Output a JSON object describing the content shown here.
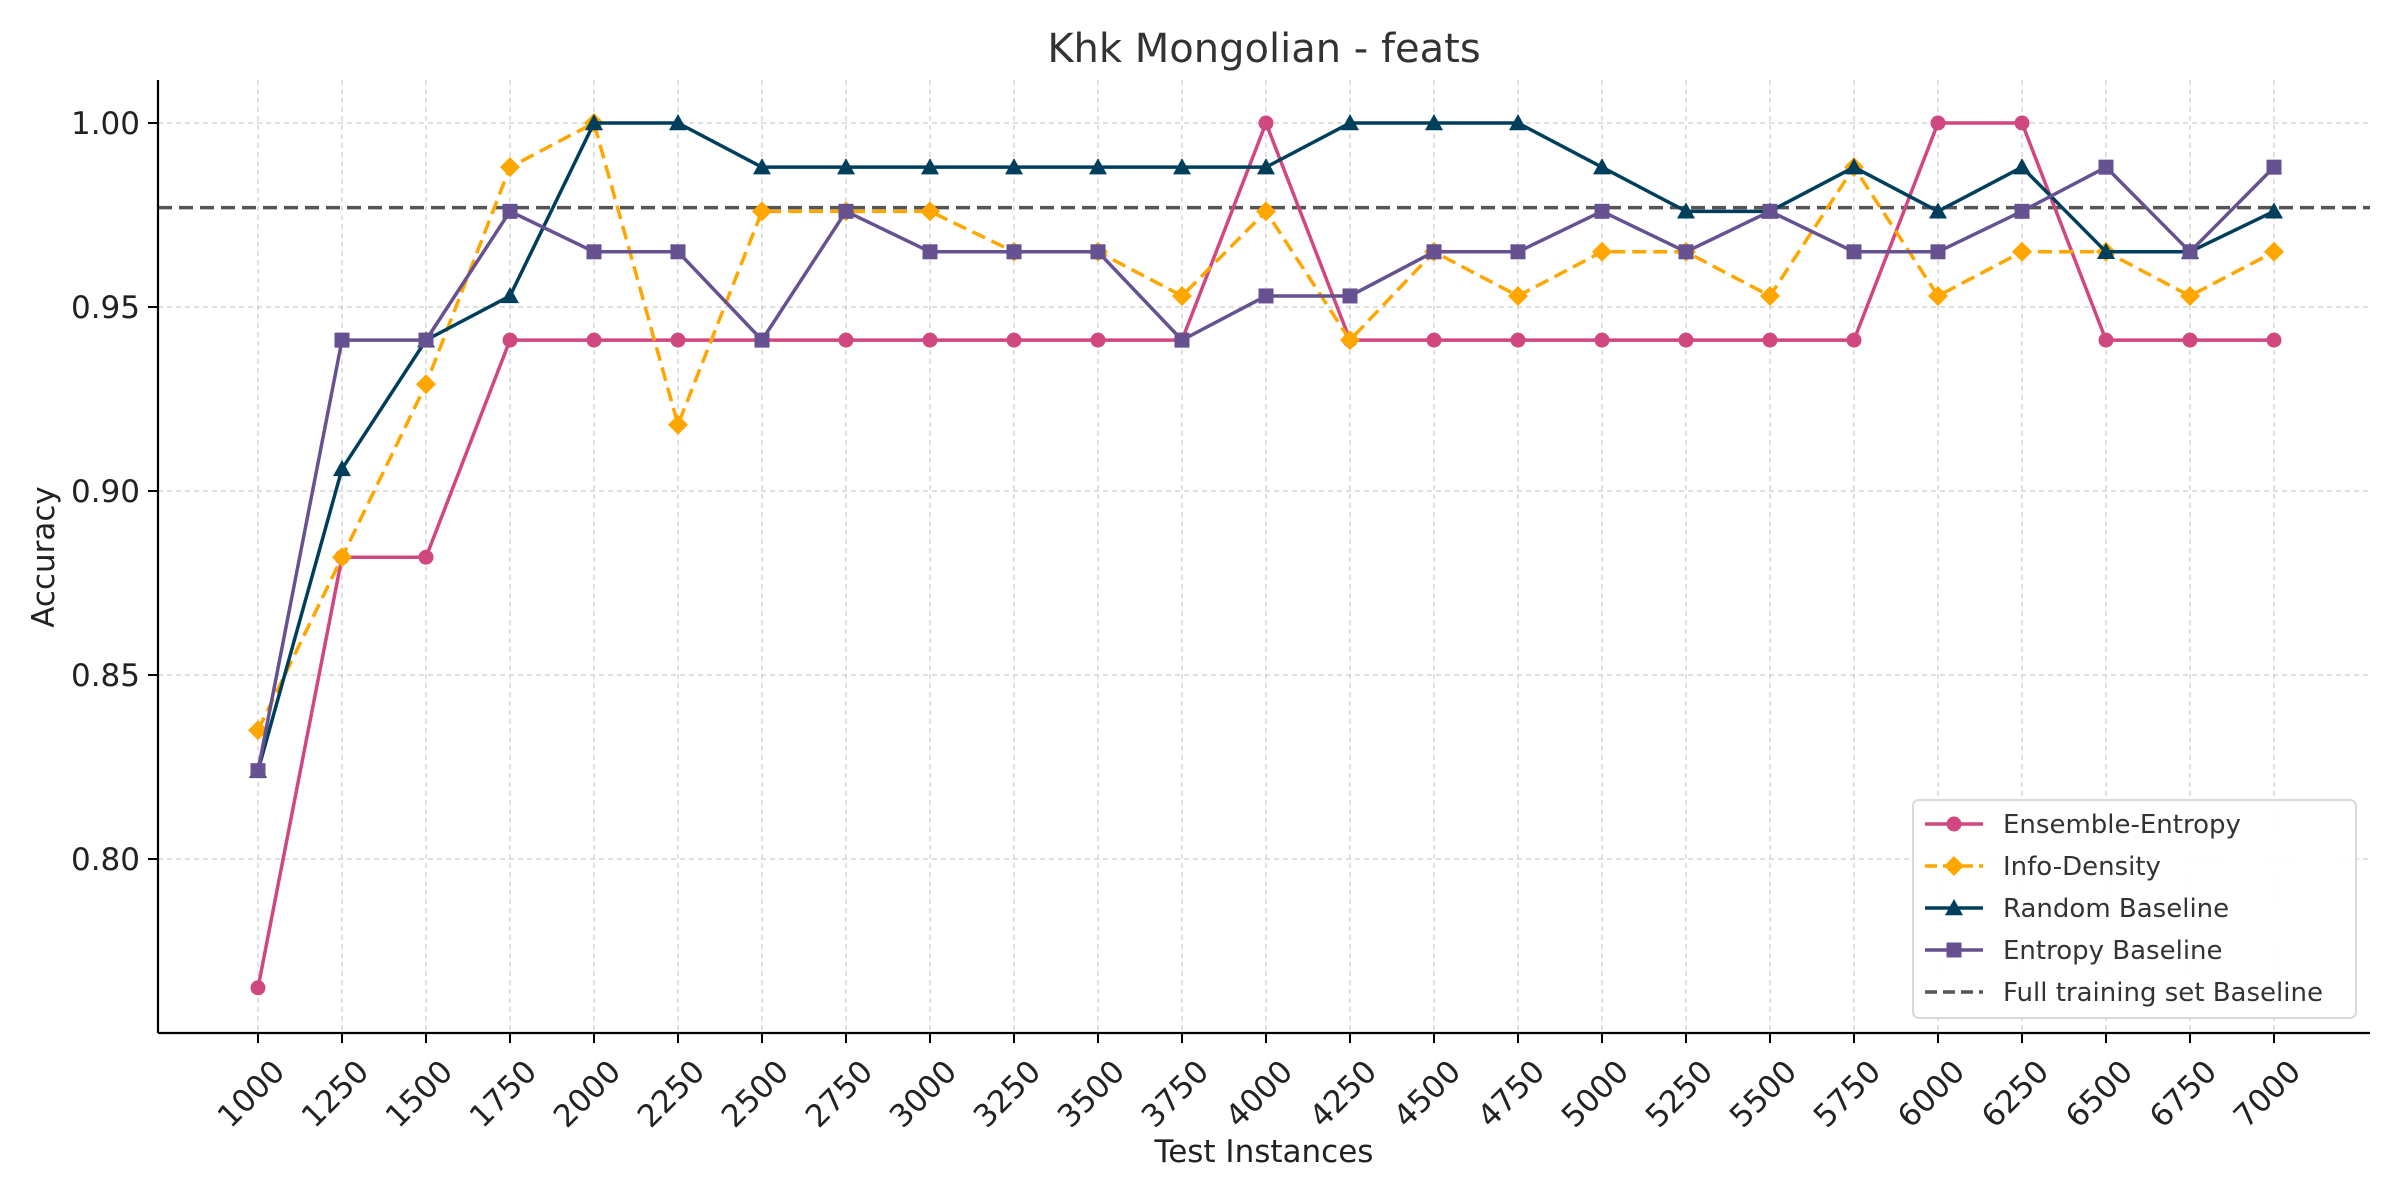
{
  "chart_data": {
    "type": "line",
    "title": "Khk Mongolian - feats",
    "xlabel": "Test Instances",
    "ylabel": "Accuracy",
    "ylim": [
      0.756,
      1.012
    ],
    "yticks": [
      0.8,
      0.85,
      0.9,
      0.95,
      1.0
    ],
    "ytick_labels": [
      "0.80",
      "0.85",
      "0.90",
      "0.95",
      "1.00"
    ],
    "grid": true,
    "legend_position": "bottom-right",
    "x": [
      "1000",
      "1250",
      "1500",
      "1750",
      "2000",
      "2250",
      "2500",
      "2750",
      "3000",
      "3250",
      "3500",
      "3750",
      "4000",
      "4250",
      "4500",
      "4750",
      "5000",
      "5250",
      "5500",
      "5750",
      "6000",
      "6250",
      "6500",
      "6750",
      "7000"
    ],
    "series": [
      {
        "name": "Ensemble-Entropy",
        "color": "#d1477f",
        "marker": "circle",
        "dashed": false,
        "values": [
          0.765,
          0.882,
          0.882,
          0.941,
          0.941,
          0.941,
          0.941,
          0.941,
          0.941,
          0.941,
          0.941,
          0.941,
          1.0,
          0.941,
          0.941,
          0.941,
          0.941,
          0.941,
          0.941,
          0.941,
          1.0,
          1.0,
          0.941,
          0.941,
          0.941
        ]
      },
      {
        "name": "Info-Density",
        "color": "#ffa600",
        "marker": "diamond",
        "dashed": true,
        "values": [
          0.835,
          0.882,
          0.929,
          0.988,
          1.0,
          0.918,
          0.976,
          0.976,
          0.976,
          0.965,
          0.965,
          0.953,
          0.976,
          0.941,
          0.965,
          0.953,
          0.965,
          0.965,
          0.953,
          0.988,
          0.953,
          0.965,
          0.965,
          0.953,
          0.965
        ]
      },
      {
        "name": "Random Baseline",
        "color": "#003f5c",
        "marker": "triangle",
        "dashed": false,
        "values": [
          0.824,
          0.906,
          0.941,
          0.953,
          1.0,
          1.0,
          0.988,
          0.988,
          0.988,
          0.988,
          0.988,
          0.988,
          0.988,
          1.0,
          1.0,
          1.0,
          0.988,
          0.976,
          0.976,
          0.988,
          0.976,
          0.988,
          0.965,
          0.965,
          0.976
        ]
      },
      {
        "name": "Entropy Baseline",
        "color": "#665191",
        "marker": "square",
        "dashed": false,
        "values": [
          0.824,
          0.941,
          0.941,
          0.976,
          0.965,
          0.965,
          0.941,
          0.976,
          0.965,
          0.965,
          0.965,
          0.941,
          0.953,
          0.953,
          0.965,
          0.965,
          0.976,
          0.965,
          0.976,
          0.965,
          0.965,
          0.976,
          0.988,
          0.965,
          0.988
        ]
      }
    ],
    "baseline": {
      "name": "Full training set Baseline",
      "color": "#555555",
      "value": 0.977
    }
  }
}
